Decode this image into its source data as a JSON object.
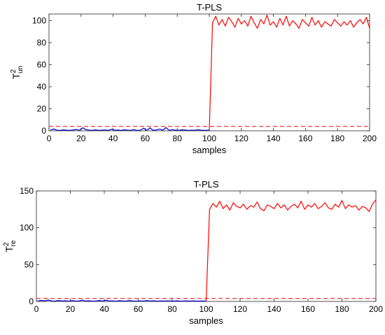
{
  "chart_data": [
    {
      "type": "line",
      "title": "T-PLS",
      "xlabel": "samples",
      "ylabel": "T",
      "ylabel_sup": "2",
      "ylabel_sub": "un",
      "xlim": [
        0,
        200
      ],
      "ylim": [
        0,
        106
      ],
      "xticks": [
        0,
        20,
        40,
        60,
        80,
        100,
        120,
        140,
        160,
        180,
        200
      ],
      "yticks": [
        0,
        20,
        40,
        60,
        80,
        100
      ],
      "grid": false,
      "threshold": {
        "value": 4.0,
        "color": "#ff0000",
        "style": "dashed"
      },
      "series": [
        {
          "color": "#0000cc",
          "x": [
            1,
            3,
            5,
            7,
            9,
            11,
            13,
            15,
            17,
            19,
            21,
            23,
            25,
            27,
            29,
            31,
            33,
            35,
            37,
            39,
            41,
            43,
            45,
            47,
            49,
            51,
            53,
            55,
            57,
            59,
            61,
            63,
            65,
            67,
            69,
            71,
            73,
            75,
            77,
            79,
            81,
            83,
            85,
            87,
            89,
            91,
            93,
            95,
            97,
            99,
            100
          ],
          "y": [
            0.8,
            1.6,
            0.5,
            0.3,
            0.9,
            0.6,
            0.4,
            0.7,
            1.2,
            0.5,
            2.7,
            1.1,
            0.6,
            0.4,
            0.9,
            0.3,
            0.6,
            0.8,
            0.4,
            1.4,
            0.5,
            0.7,
            0.3,
            0.9,
            0.6,
            0.5,
            1.0,
            0.3,
            0.6,
            2.3,
            0.5,
            2.6,
            0.4,
            0.8,
            1.5,
            0.6,
            2.9,
            0.4,
            1.1,
            0.6,
            0.5,
            0.9,
            0.7,
            0.3,
            0.6,
            0.5,
            0.9,
            0.6,
            0.4,
            0.5,
            0.6
          ]
        },
        {
          "color": "#ff0000",
          "x": [
            100,
            102,
            104,
            106,
            108,
            110,
            112,
            114,
            116,
            118,
            120,
            122,
            124,
            126,
            128,
            130,
            132,
            134,
            136,
            138,
            140,
            142,
            144,
            146,
            148,
            150,
            152,
            154,
            156,
            158,
            160,
            162,
            164,
            166,
            168,
            170,
            172,
            174,
            176,
            178,
            180,
            182,
            184,
            186,
            188,
            190,
            192,
            194,
            196,
            198,
            200
          ],
          "y": [
            0.6,
            98,
            104,
            96,
            101,
            95,
            103,
            99,
            94,
            102,
            97,
            100,
            95,
            104,
            98,
            93,
            101,
            97,
            105,
            96,
            99,
            94,
            102,
            96,
            104,
            95,
            100,
            97,
            93,
            101,
            98,
            95,
            103,
            96,
            100,
            94,
            99,
            97,
            95,
            101,
            98,
            95,
            99,
            96,
            100,
            94,
            98,
            101,
            97,
            103,
            93
          ]
        }
      ]
    },
    {
      "type": "line",
      "title": "T-PLS",
      "xlabel": "samples",
      "ylabel": "T",
      "ylabel_sup": "2",
      "ylabel_sub": "re",
      "xlim": [
        0,
        200
      ],
      "ylim": [
        0,
        150
      ],
      "xticks": [
        0,
        20,
        40,
        60,
        80,
        100,
        120,
        140,
        160,
        180,
        200
      ],
      "yticks": [
        0,
        50,
        100,
        150
      ],
      "grid": false,
      "threshold": {
        "value": 4.0,
        "color": "#ff0000",
        "style": "dashed"
      },
      "series": [
        {
          "color": "#0000cc",
          "x": [
            1,
            3,
            5,
            7,
            9,
            11,
            13,
            15,
            17,
            19,
            21,
            23,
            25,
            27,
            29,
            31,
            33,
            35,
            37,
            39,
            41,
            43,
            45,
            47,
            49,
            51,
            53,
            55,
            57,
            59,
            61,
            63,
            65,
            67,
            69,
            71,
            73,
            75,
            77,
            79,
            81,
            83,
            85,
            87,
            89,
            91,
            93,
            95,
            97,
            99,
            100
          ],
          "y": [
            0.6,
            1.4,
            0.8,
            1.9,
            0.7,
            0.5,
            1.2,
            0.6,
            0.9,
            0.4,
            1.1,
            0.7,
            0.5,
            1.8,
            0.6,
            0.9,
            0.4,
            0.7,
            1.3,
            0.5,
            1.6,
            0.6,
            0.8,
            0.4,
            1.0,
            0.5,
            0.7,
            1.2,
            0.6,
            0.4,
            0.8,
            0.5,
            1.1,
            0.6,
            0.9,
            0.4,
            0.7,
            0.5,
            0.8,
            0.6,
            0.5,
            0.9,
            0.4,
            0.7,
            0.6,
            0.5,
            0.8,
            0.4,
            0.6,
            0.5,
            0.6
          ]
        },
        {
          "color": "#ff0000",
          "x": [
            100,
            102,
            104,
            106,
            108,
            110,
            112,
            114,
            116,
            118,
            120,
            122,
            124,
            126,
            128,
            130,
            132,
            134,
            136,
            138,
            140,
            142,
            144,
            146,
            148,
            150,
            152,
            154,
            156,
            158,
            160,
            162,
            164,
            166,
            168,
            170,
            172,
            174,
            176,
            178,
            180,
            182,
            184,
            186,
            188,
            190,
            192,
            194,
            196,
            198,
            200
          ],
          "y": [
            0.6,
            125,
            133,
            128,
            136,
            126,
            131,
            124,
            134,
            129,
            127,
            132,
            125,
            130,
            128,
            135,
            126,
            123,
            131,
            129,
            126,
            133,
            127,
            131,
            124,
            129,
            132,
            127,
            136,
            125,
            131,
            128,
            133,
            126,
            129,
            134,
            127,
            125,
            132,
            128,
            137,
            126,
            131,
            128,
            130,
            124,
            129,
            127,
            122,
            132,
            138
          ]
        }
      ]
    }
  ]
}
